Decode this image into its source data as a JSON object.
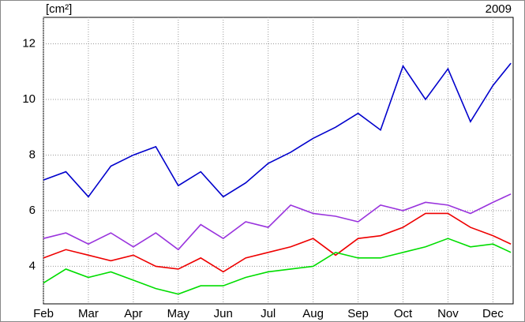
{
  "chart_data": {
    "type": "line",
    "unit_label": "[cm²]",
    "annotation": "2009",
    "x": [
      0,
      0.5,
      1,
      1.5,
      2,
      2.5,
      3,
      3.5,
      4,
      4.5,
      5,
      5.5,
      6,
      6.5,
      7,
      7.5,
      8,
      8.5,
      9,
      9.5,
      10,
      10.4
    ],
    "xlim": [
      0,
      10.45
    ],
    "xticks": [
      {
        "value": 0,
        "label": "Feb"
      },
      {
        "value": 1,
        "label": "Mar"
      },
      {
        "value": 2,
        "label": "Apr"
      },
      {
        "value": 3,
        "label": "May"
      },
      {
        "value": 4,
        "label": "Jun"
      },
      {
        "value": 5,
        "label": "Jul"
      },
      {
        "value": 6,
        "label": "Aug"
      },
      {
        "value": 7,
        "label": "Sep"
      },
      {
        "value": 8,
        "label": "Oct"
      },
      {
        "value": 9,
        "label": "Nov"
      },
      {
        "value": 10,
        "label": "Dec"
      }
    ],
    "ylim": [
      2.65,
      12.95
    ],
    "yticks": [
      4,
      6,
      8,
      10,
      12
    ],
    "grid": true,
    "series": [
      {
        "color": "#0000cc",
        "values": [
          7.1,
          7.4,
          6.5,
          7.6,
          8.0,
          8.3,
          6.9,
          7.4,
          6.5,
          7.0,
          7.7,
          8.1,
          8.6,
          9.0,
          9.5,
          8.9,
          11.2,
          10.0,
          11.1,
          9.2,
          10.5,
          11.3
        ]
      },
      {
        "color": "#9933dd",
        "values": [
          5.0,
          5.2,
          4.8,
          5.2,
          4.7,
          5.2,
          4.6,
          5.5,
          5.0,
          5.6,
          5.4,
          6.2,
          5.9,
          5.8,
          5.6,
          6.2,
          6.0,
          6.3,
          6.2,
          5.9,
          6.3,
          6.6
        ]
      },
      {
        "color": "#ee0000",
        "values": [
          4.3,
          4.6,
          4.4,
          4.2,
          4.4,
          4.0,
          3.9,
          4.3,
          3.8,
          4.3,
          4.5,
          4.7,
          5.0,
          4.4,
          5.0,
          5.1,
          5.4,
          5.9,
          5.9,
          5.4,
          5.1,
          4.8
        ]
      },
      {
        "color": "#00dd00",
        "values": [
          3.4,
          3.9,
          3.6,
          3.8,
          3.5,
          3.2,
          3.0,
          3.3,
          3.3,
          3.6,
          3.8,
          3.9,
          4.0,
          4.5,
          4.3,
          4.3,
          4.5,
          4.7,
          5.0,
          4.7,
          4.8,
          4.5
        ]
      }
    ]
  }
}
